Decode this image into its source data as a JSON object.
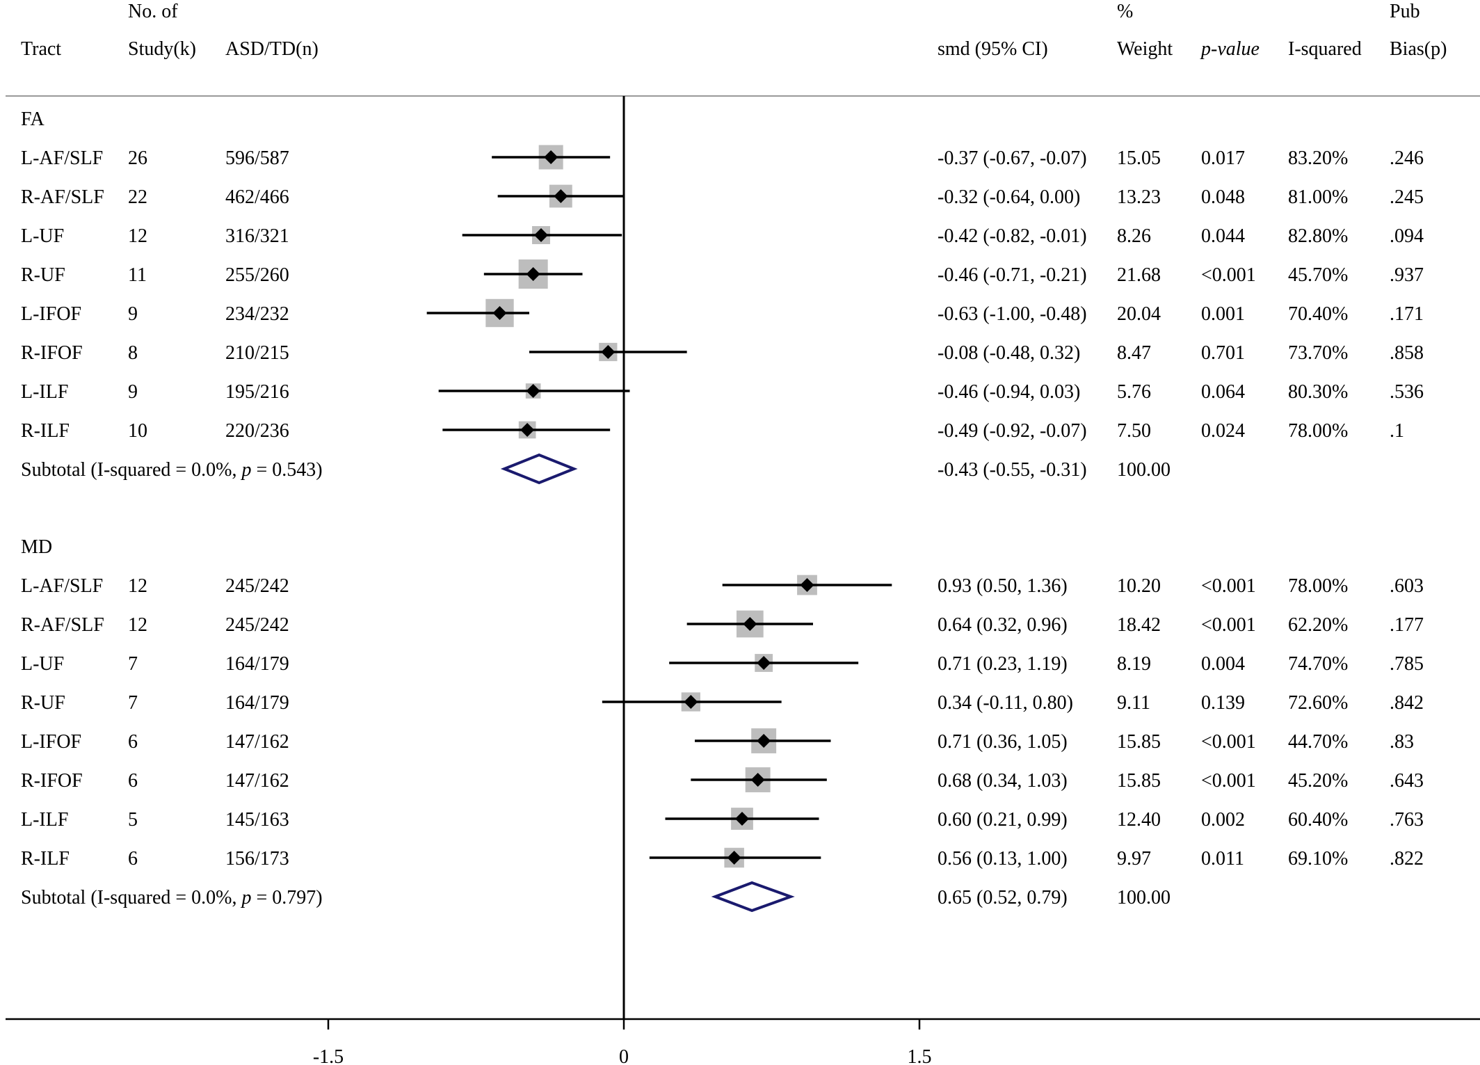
{
  "header": {
    "tract": "Tract",
    "k_top": "No. of",
    "k_bottom": "Study(k)",
    "n": "ASD/TD(n)",
    "smd": "smd (95% CI)",
    "weight_top": "%",
    "weight_bottom": "Weight",
    "pvalue": "p-value",
    "isq": "I-squared",
    "bias_top": "Pub",
    "bias_bottom": "Bias(p)"
  },
  "chart_data": {
    "type": "forest",
    "xlim": [
      -3.2,
      4.4
    ],
    "reference_line": 0,
    "ticks": [
      {
        "value": -1.5,
        "label": "-1.5"
      },
      {
        "value": 0,
        "label": "0"
      },
      {
        "value": 1.5,
        "label": "1.5"
      }
    ],
    "groups": [
      {
        "name": "FA",
        "studies": [
          {
            "tract": "L-AF/SLF",
            "k": "26",
            "n": "596/587",
            "smd": -0.37,
            "lo": -0.67,
            "hi": -0.07,
            "smd_text": "-0.37 (-0.67, -0.07)",
            "weight": 15.05,
            "weight_text": "15.05",
            "p": "0.017",
            "isq": "83.20%",
            "bias": ".246"
          },
          {
            "tract": "R-AF/SLF",
            "k": "22",
            "n": "462/466",
            "smd": -0.32,
            "lo": -0.64,
            "hi": 0.0,
            "smd_text": "-0.32 (-0.64, 0.00)",
            "weight": 13.23,
            "weight_text": "13.23",
            "p": "0.048",
            "isq": "81.00%",
            "bias": ".245"
          },
          {
            "tract": "L-UF",
            "k": "12",
            "n": "316/321",
            "smd": -0.42,
            "lo": -0.82,
            "hi": -0.01,
            "smd_text": "-0.42 (-0.82, -0.01)",
            "weight": 8.26,
            "weight_text": "8.26",
            "p": "0.044",
            "isq": "82.80%",
            "bias": ".094"
          },
          {
            "tract": "R-UF",
            "k": "11",
            "n": "255/260",
            "smd": -0.46,
            "lo": -0.71,
            "hi": -0.21,
            "smd_text": "-0.46 (-0.71, -0.21)",
            "weight": 21.68,
            "weight_text": "21.68",
            "p": "<0.001",
            "isq": "45.70%",
            "bias": ".937"
          },
          {
            "tract": "L-IFOF",
            "k": "9",
            "n": "234/232",
            "smd": -0.63,
            "lo": -1.0,
            "hi": -0.48,
            "smd_text": "-0.63 (-1.00, -0.48)",
            "weight": 20.04,
            "weight_text": "20.04",
            "p": "0.001",
            "isq": "70.40%",
            "bias": ".171"
          },
          {
            "tract": "R-IFOF",
            "k": "8",
            "n": "210/215",
            "smd": -0.08,
            "lo": -0.48,
            "hi": 0.32,
            "smd_text": "-0.08 (-0.48, 0.32)",
            "weight": 8.47,
            "weight_text": "8.47",
            "p": "0.701",
            "isq": "73.70%",
            "bias": ".858"
          },
          {
            "tract": "L-ILF",
            "k": "9",
            "n": "195/216",
            "smd": -0.46,
            "lo": -0.94,
            "hi": 0.03,
            "smd_text": "-0.46 (-0.94, 0.03)",
            "weight": 5.76,
            "weight_text": "5.76",
            "p": "0.064",
            "isq": "80.30%",
            "bias": ".536"
          },
          {
            "tract": "R-ILF",
            "k": "10",
            "n": "220/236",
            "smd": -0.49,
            "lo": -0.92,
            "hi": -0.07,
            "smd_text": "-0.49 (-0.92, -0.07)",
            "weight": 7.5,
            "weight_text": "7.50",
            "p": "0.024",
            "isq": "78.00%",
            "bias": ".1"
          }
        ],
        "subtotal": {
          "label_pre": "Subtotal  (I-squared = 0.0%, ",
          "label_p": "p",
          "label_post": " = 0.543)",
          "smd": -0.43,
          "lo": -0.55,
          "hi": -0.31,
          "smd_text": "-0.43 (-0.55, -0.31)",
          "weight_text": "100.00"
        }
      },
      {
        "name": "MD",
        "studies": [
          {
            "tract": "L-AF/SLF",
            "k": "12",
            "n": "245/242",
            "smd": 0.93,
            "lo": 0.5,
            "hi": 1.36,
            "smd_text": "0.93 (0.50, 1.36)",
            "weight": 10.2,
            "weight_text": "10.20",
            "p": "<0.001",
            "isq": "78.00%",
            "bias": ".603"
          },
          {
            "tract": "R-AF/SLF",
            "k": "12",
            "n": "245/242",
            "smd": 0.64,
            "lo": 0.32,
            "hi": 0.96,
            "smd_text": "0.64 (0.32, 0.96)",
            "weight": 18.42,
            "weight_text": "18.42",
            "p": "<0.001",
            "isq": "62.20%",
            "bias": ".177"
          },
          {
            "tract": "L-UF",
            "k": "7",
            "n": "164/179",
            "smd": 0.71,
            "lo": 0.23,
            "hi": 1.19,
            "smd_text": "0.71 (0.23, 1.19)",
            "weight": 8.19,
            "weight_text": "8.19",
            "p": "0.004",
            "isq": "74.70%",
            "bias": ".785"
          },
          {
            "tract": "R-UF",
            "k": "7",
            "n": "164/179",
            "smd": 0.34,
            "lo": -0.11,
            "hi": 0.8,
            "smd_text": "0.34 (-0.11, 0.80)",
            "weight": 9.11,
            "weight_text": "9.11",
            "p": "0.139",
            "isq": "72.60%",
            "bias": ".842"
          },
          {
            "tract": "L-IFOF",
            "k": "6",
            "n": "147/162",
            "smd": 0.71,
            "lo": 0.36,
            "hi": 1.05,
            "smd_text": "0.71 (0.36, 1.05)",
            "weight": 15.85,
            "weight_text": "15.85",
            "p": "<0.001",
            "isq": "44.70%",
            "bias": ".83"
          },
          {
            "tract": "R-IFOF",
            "k": "6",
            "n": "147/162",
            "smd": 0.68,
            "lo": 0.34,
            "hi": 1.03,
            "smd_text": "0.68 (0.34, 1.03)",
            "weight": 15.85,
            "weight_text": "15.85",
            "p": "<0.001",
            "isq": "45.20%",
            "bias": ".643"
          },
          {
            "tract": "L-ILF",
            "k": "5",
            "n": "145/163",
            "smd": 0.6,
            "lo": 0.21,
            "hi": 0.99,
            "smd_text": "0.60 (0.21, 0.99)",
            "weight": 12.4,
            "weight_text": "12.40",
            "p": "0.002",
            "isq": "60.40%",
            "bias": ".763"
          },
          {
            "tract": "R-ILF",
            "k": "6",
            "n": "156/173",
            "smd": 0.56,
            "lo": 0.13,
            "hi": 1.0,
            "smd_text": "0.56 (0.13, 1.00)",
            "weight": 9.97,
            "weight_text": "9.97",
            "p": "0.011",
            "isq": "69.10%",
            "bias": ".822"
          }
        ],
        "subtotal": {
          "label_pre": "Subtotal  (I-squared = 0.0%, ",
          "label_p": "p",
          "label_post": " = 0.797)",
          "smd": 0.65,
          "lo": 0.52,
          "hi": 0.79,
          "smd_text": "0.65 (0.52, 0.79)",
          "weight_text": "100.00"
        }
      }
    ]
  },
  "colors": {
    "text": "#000000",
    "weight_box": "#bdbdbd",
    "diamond_stroke": "#1a1a6e",
    "axis": "#000000"
  }
}
